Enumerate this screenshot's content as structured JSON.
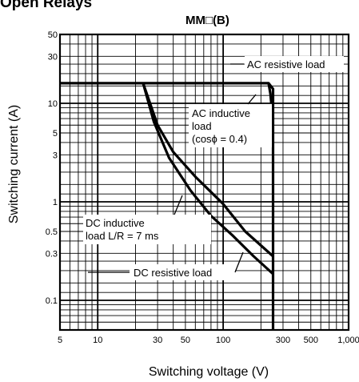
{
  "page": {
    "title": "Open Relays"
  },
  "chart_data": {
    "type": "line",
    "title": "MM□(B)",
    "xlabel": "Switching voltage (V)",
    "ylabel": "Switching current (A)",
    "x_scale": "log",
    "y_scale": "log",
    "xlim": [
      5,
      1000
    ],
    "ylim": [
      0.05,
      50
    ],
    "x_ticks": [
      {
        "value": 5,
        "label": "5"
      },
      {
        "value": 10,
        "label": "10"
      },
      {
        "value": 30,
        "label": "30"
      },
      {
        "value": 50,
        "label": "50"
      },
      {
        "value": 100,
        "label": "100"
      },
      {
        "value": 300,
        "label": "300"
      },
      {
        "value": 500,
        "label": "500"
      },
      {
        "value": 1000,
        "label": "1,000"
      }
    ],
    "y_ticks": [
      {
        "value": 0.1,
        "label": "0.1"
      },
      {
        "value": 0.3,
        "label": "0.3"
      },
      {
        "value": 0.5,
        "label": "0.5"
      },
      {
        "value": 1,
        "label": "1"
      },
      {
        "value": 3,
        "label": "3"
      },
      {
        "value": 5,
        "label": "5"
      },
      {
        "value": 10,
        "label": "10"
      },
      {
        "value": 30,
        "label": "30"
      },
      {
        "value": 50,
        "label": "50"
      }
    ],
    "grid": true,
    "series": [
      {
        "name": "AC resistive load",
        "points": [
          [
            5,
            16
          ],
          [
            230,
            16
          ],
          [
            250,
            14
          ],
          [
            250,
            0.05
          ]
        ]
      },
      {
        "name": "AC inductive load (cosϕ = 0.4)",
        "points": [
          [
            230,
            16
          ],
          [
            238,
            12.5
          ],
          [
            242,
            10
          ]
        ]
      },
      {
        "name": "DC inductive load L/R = 7 ms",
        "points": [
          [
            23,
            16
          ],
          [
            30,
            6
          ],
          [
            40,
            3.2
          ],
          [
            60,
            1.8
          ],
          [
            100,
            0.95
          ],
          [
            150,
            0.5
          ],
          [
            250,
            0.28
          ]
        ]
      },
      {
        "name": "DC resistive load",
        "points": [
          [
            23,
            16
          ],
          [
            28,
            6.5
          ],
          [
            37,
            2.8
          ],
          [
            55,
            1.3
          ],
          [
            80,
            0.72
          ],
          [
            120,
            0.45
          ],
          [
            175,
            0.28
          ],
          [
            250,
            0.185
          ]
        ]
      }
    ],
    "annotations": [
      {
        "lines": [
          "AC resistive load"
        ]
      },
      {
        "lines": [
          "AC inductive",
          "load",
          "(cosϕ = 0.4)"
        ]
      },
      {
        "lines": [
          "DC inductive",
          "load L/R = 7 ms"
        ]
      },
      {
        "lines": [
          "DC resistive load"
        ]
      }
    ]
  }
}
